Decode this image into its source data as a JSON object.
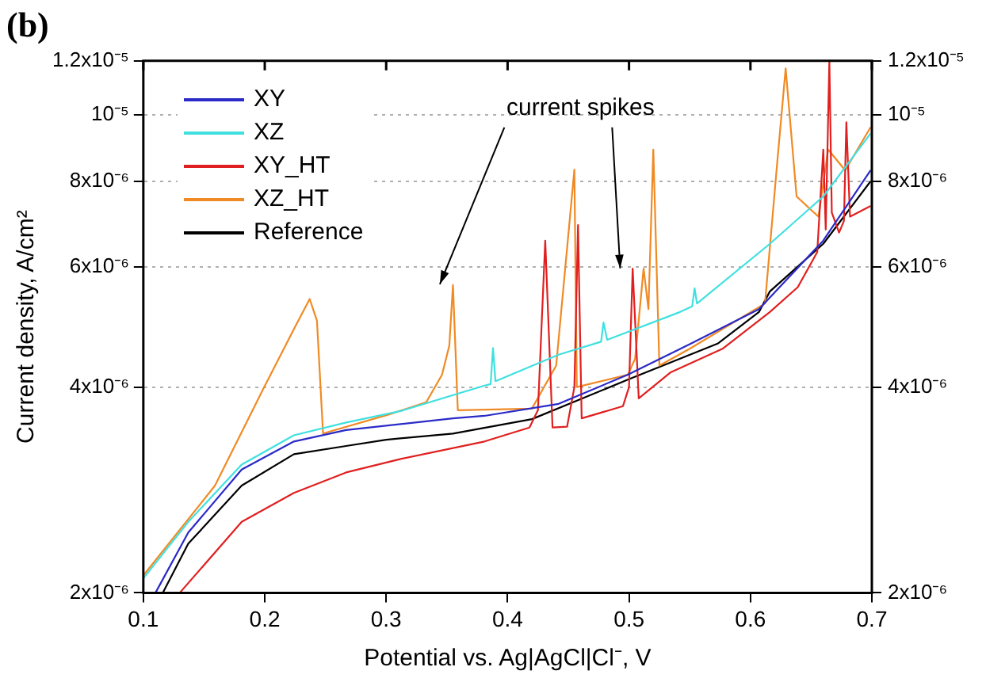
{
  "chart_data": {
    "type": "line",
    "title": "(b)",
    "xlabel": "Potential vs. Ag|AgCl|Cl⁻, V",
    "ylabel": "Current density, A/cm²",
    "annotations": [
      "current spikes"
    ],
    "log": "y",
    "grid": "y",
    "legend": "top left",
    "marker": "none",
    "line_style": "solid",
    "xlim": [
      0.1,
      0.7
    ],
    "xticks": [
      0.1,
      0.2,
      0.3,
      0.4,
      0.5,
      0.6,
      0.7
    ],
    "ylim": [
      2e-06,
      1.2e-05
    ],
    "yticks": [
      {
        "value": 2e-06,
        "label": "2x10⁻⁶"
      },
      {
        "value": 4e-06,
        "label": "4x10⁻⁶"
      },
      {
        "value": 6e-06,
        "label": "6x10⁻⁶"
      },
      {
        "value": 8e-06,
        "label": "8x10⁻⁶"
      },
      {
        "value": 1e-05,
        "label": "10⁻⁵"
      },
      {
        "value": 1.2e-05,
        "label": "1.2x10⁻⁵"
      }
    ],
    "series": [
      {
        "name": "XY",
        "color": "#2a2ac8",
        "x": [
          0.11,
          0.137,
          0.181,
          0.224,
          0.267,
          0.355,
          0.381,
          0.442,
          0.499,
          0.55,
          0.607,
          0.66,
          0.699
        ],
        "values": [
          2e-06,
          2.45e-06,
          3.03e-06,
          3.33e-06,
          3.46e-06,
          3.6e-06,
          3.63e-06,
          3.78e-06,
          4.17e-06,
          4.62e-06,
          5.2e-06,
          6.55e-06,
          8.3e-06
        ]
      },
      {
        "name": "XZ",
        "color": "#40e0e0",
        "x": [
          0.1,
          0.137,
          0.181,
          0.224,
          0.267,
          0.312,
          0.381,
          0.386,
          0.388,
          0.39,
          0.442,
          0.477,
          0.479,
          0.482,
          0.542,
          0.552,
          0.554,
          0.556,
          0.616,
          0.66,
          0.699
        ],
        "values": [
          2.1e-06,
          2.54e-06,
          3.08e-06,
          3.4e-06,
          3.55e-06,
          3.69e-06,
          4.02e-06,
          4.04e-06,
          4.56e-06,
          4.08e-06,
          4.46e-06,
          4.66e-06,
          4.97e-06,
          4.69e-06,
          5.15e-06,
          5.25e-06,
          5.58e-06,
          5.3e-06,
          6.48e-06,
          7.6e-06,
          9.4e-06
        ]
      },
      {
        "name": "XY_HT",
        "color": "#e02020",
        "x": [
          0.13,
          0.181,
          0.224,
          0.267,
          0.312,
          0.381,
          0.418,
          0.425,
          0.431,
          0.437,
          0.449,
          0.455,
          0.458,
          0.461,
          0.495,
          0.5,
          0.503,
          0.508,
          0.534,
          0.577,
          0.616,
          0.639,
          0.655,
          0.66,
          0.662,
          0.665,
          0.667,
          0.673,
          0.677,
          0.679,
          0.682,
          0.699
        ],
        "values": [
          2e-06,
          2.54e-06,
          2.8e-06,
          3e-06,
          3.14e-06,
          3.33e-06,
          3.49e-06,
          3.7e-06,
          6.55e-06,
          3.49e-06,
          3.5e-06,
          4e-06,
          6.9e-06,
          3.6e-06,
          3.75e-06,
          4e-06,
          5.96e-06,
          3.85e-06,
          4.2e-06,
          4.55e-06,
          5.15e-06,
          5.6e-06,
          6.3e-06,
          8.9e-06,
          6.8e-06,
          1.2e-05,
          7.2e-06,
          6.73e-06,
          7e-06,
          9.76e-06,
          7.1e-06,
          7.36e-06
        ]
      },
      {
        "name": "XZ_HT",
        "color": "#f08a24",
        "x": [
          0.1,
          0.159,
          0.198,
          0.225,
          0.237,
          0.243,
          0.248,
          0.303,
          0.333,
          0.346,
          0.352,
          0.355,
          0.359,
          0.42,
          0.44,
          0.455,
          0.457,
          0.499,
          0.505,
          0.512,
          0.516,
          0.52,
          0.525,
          0.55,
          0.612,
          0.622,
          0.629,
          0.638,
          0.656,
          0.664,
          0.678,
          0.699
        ],
        "values": [
          2.12e-06,
          2.87e-06,
          3.95e-06,
          4.9e-06,
          5.38e-06,
          5e-06,
          3.42e-06,
          3.65e-06,
          3.8e-06,
          4.17e-06,
          4.6e-06,
          5.64e-06,
          3.7e-06,
          3.72e-06,
          4.3e-06,
          8.32e-06,
          4e-06,
          4.17e-06,
          4.4e-06,
          5.96e-06,
          5.2e-06,
          8.9e-06,
          4.3e-06,
          4.55e-06,
          5.3e-06,
          8.5e-06,
          1.17e-05,
          7.6e-06,
          7.1e-06,
          8.9e-06,
          8.3e-06,
          9.6e-06
        ]
      },
      {
        "name": "Reference",
        "color": "#000000",
        "x": [
          0.116,
          0.137,
          0.181,
          0.224,
          0.267,
          0.3,
          0.355,
          0.42,
          0.499,
          0.573,
          0.607,
          0.616,
          0.66,
          0.699
        ],
        "values": [
          2e-06,
          2.36e-06,
          2.87e-06,
          3.19e-06,
          3.28e-06,
          3.35e-06,
          3.42e-06,
          3.59e-06,
          4.1e-06,
          4.63e-06,
          5.15e-06,
          5.52e-06,
          6.48e-06,
          8e-06
        ]
      }
    ]
  }
}
